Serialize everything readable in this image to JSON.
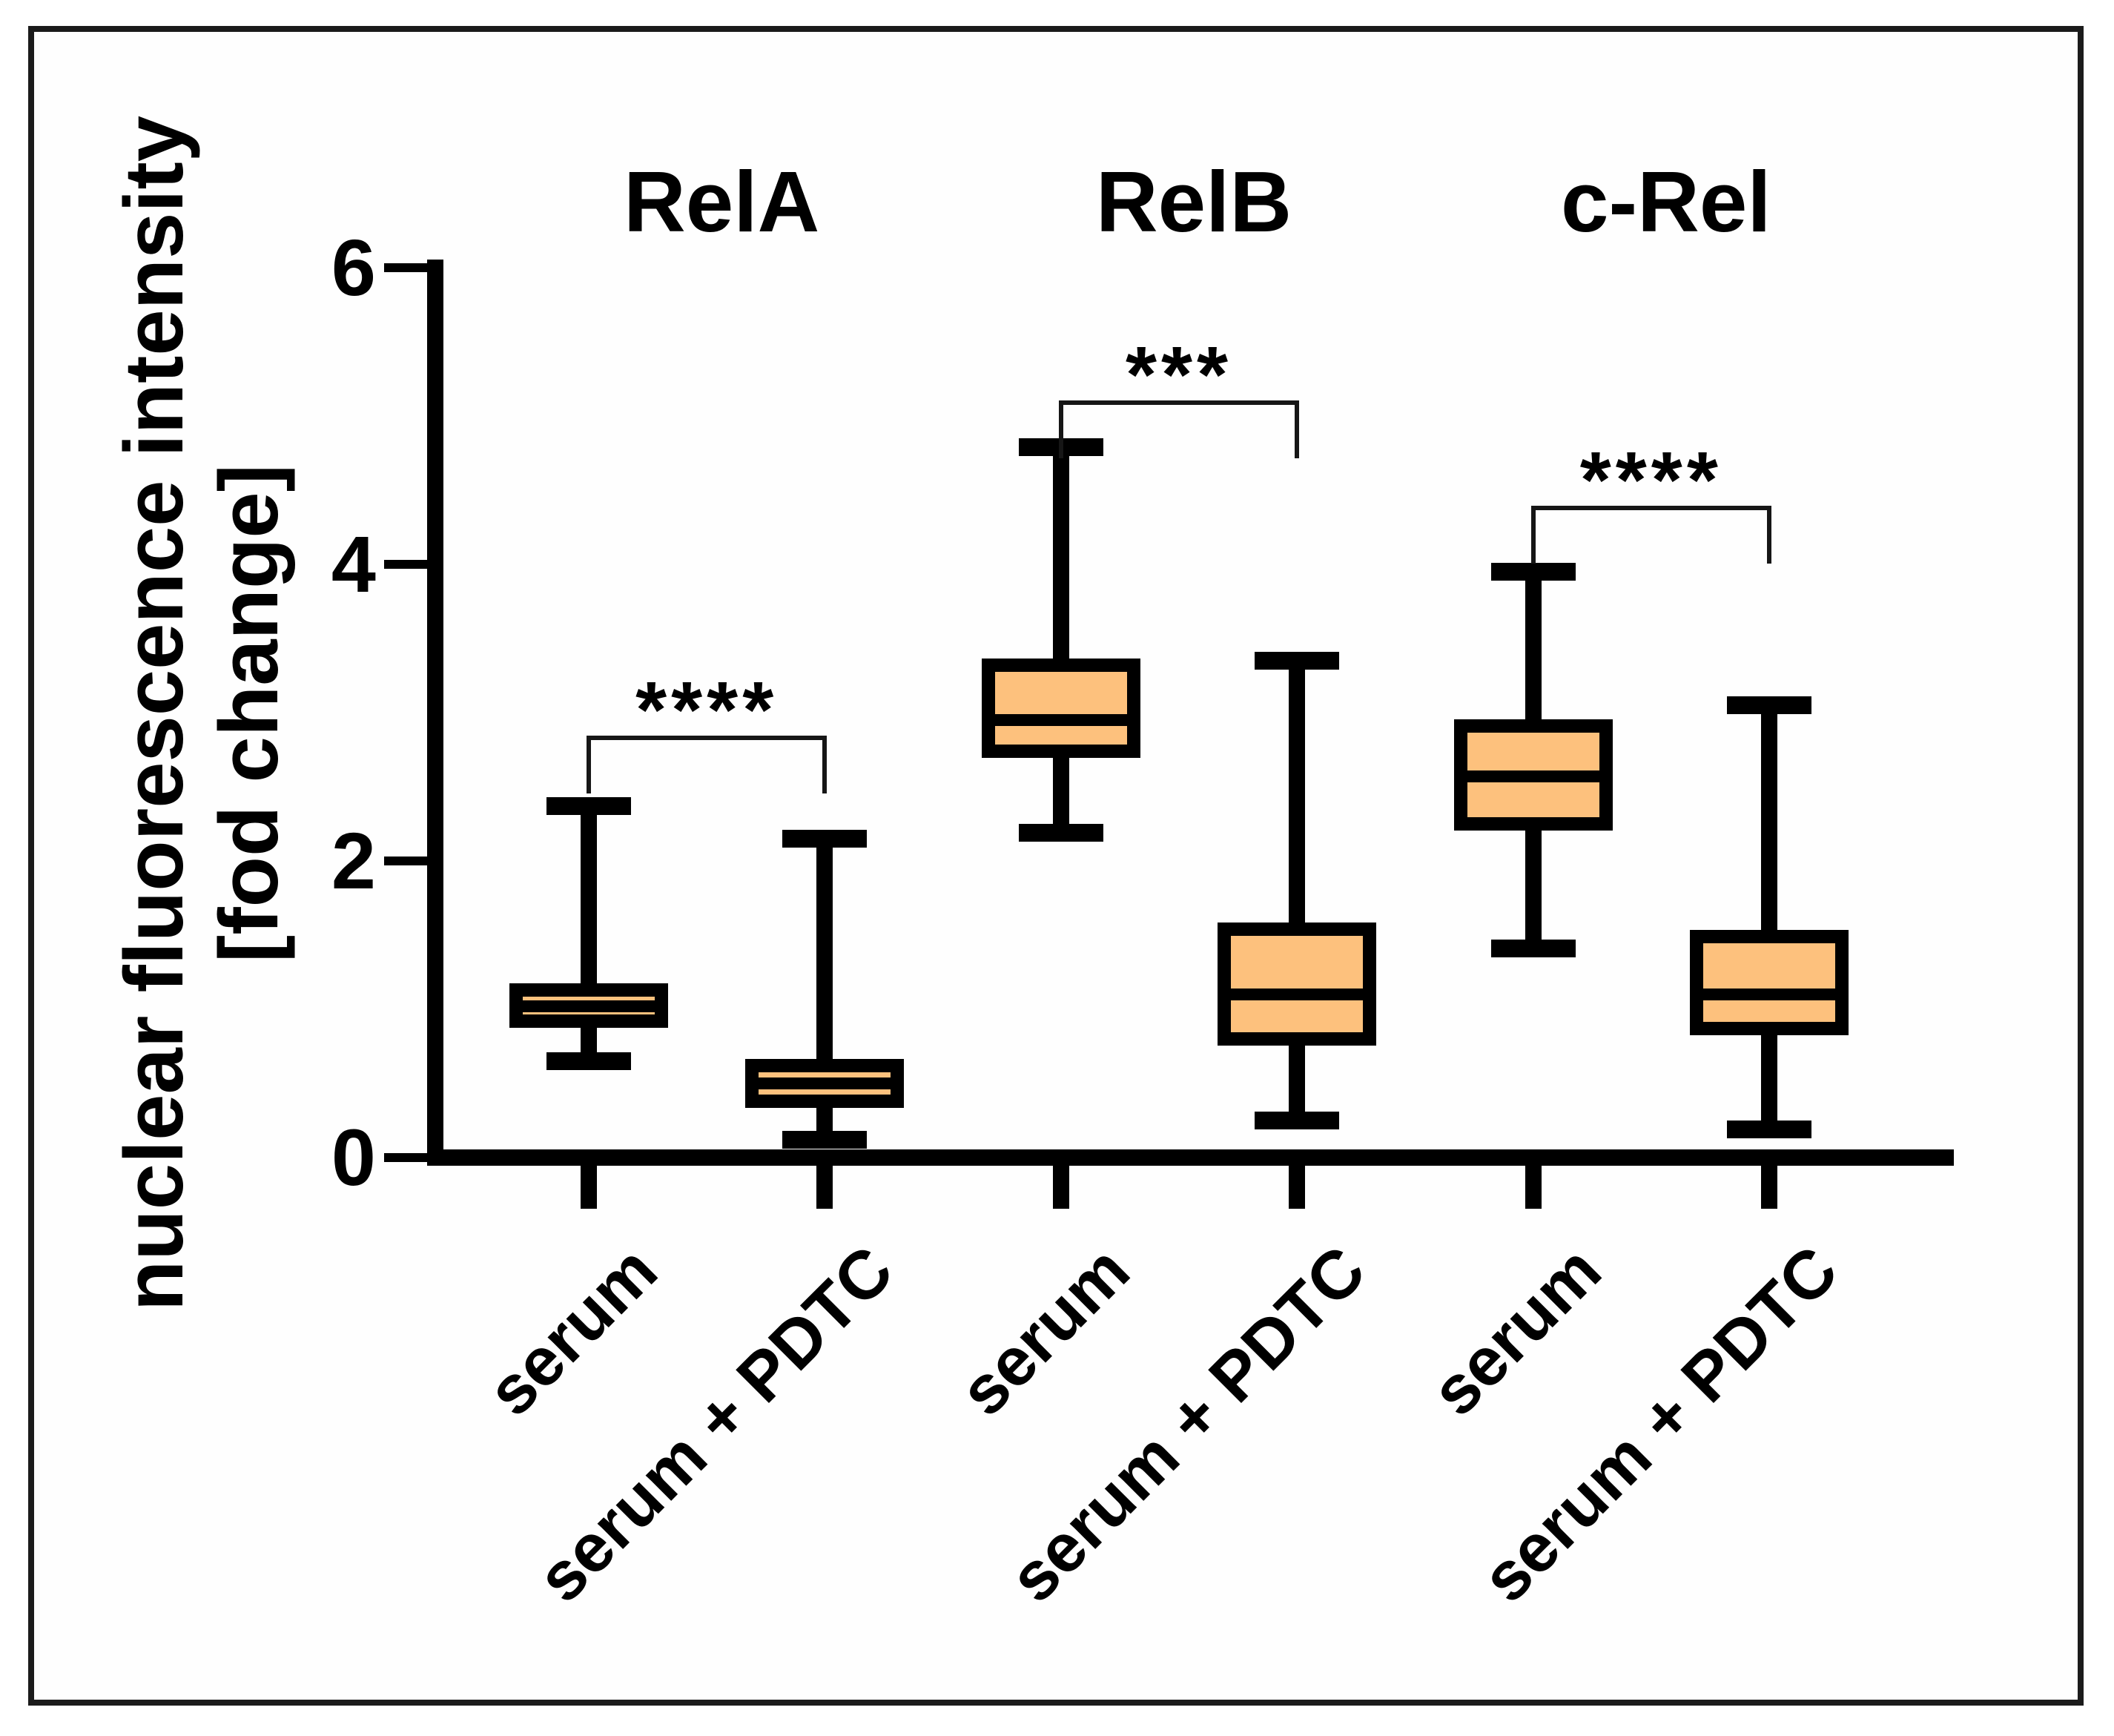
{
  "chart_data": {
    "type": "boxplot",
    "title": "",
    "ylabel_line1": "nuclear fluorescence intensity",
    "ylabel_line2": "[fod change]",
    "ylim": [
      0,
      6
    ],
    "yticks": [
      "0",
      "2",
      "4",
      "6"
    ],
    "grid": false,
    "legend": "none",
    "groups": [
      "RelA",
      "RelB",
      "c-Rel"
    ],
    "conditions": [
      "serum",
      "serum + PDTC"
    ],
    "series": [
      {
        "group": "RelA",
        "condition": "serum",
        "min": 0.65,
        "q1": 0.92,
        "median": 1.02,
        "q3": 1.13,
        "max": 2.37
      },
      {
        "group": "RelA",
        "condition": "serum + PDTC",
        "min": 0.12,
        "q1": 0.38,
        "median": 0.5,
        "q3": 0.62,
        "max": 2.15
      },
      {
        "group": "RelB",
        "condition": "serum",
        "min": 2.19,
        "q1": 2.74,
        "median": 2.95,
        "q3": 3.32,
        "max": 4.79
      },
      {
        "group": "RelB",
        "condition": "serum + PDTC",
        "min": 0.25,
        "q1": 0.8,
        "median": 1.1,
        "q3": 1.54,
        "max": 3.35
      },
      {
        "group": "c-Rel",
        "condition": "serum",
        "min": 1.41,
        "q1": 2.25,
        "median": 2.57,
        "q3": 2.91,
        "max": 3.95
      },
      {
        "group": "c-Rel",
        "condition": "serum + PDTC",
        "min": 0.19,
        "q1": 0.87,
        "median": 1.1,
        "q3": 1.49,
        "max": 3.05
      }
    ],
    "significance": [
      {
        "group": "RelA",
        "label": "****",
        "bracket_y": 2.83
      },
      {
        "group": "RelB",
        "label": "***",
        "bracket_y": 5.09
      },
      {
        "group": "c-Rel",
        "label": "****",
        "bracket_y": 4.38
      }
    ],
    "colors": {
      "box_fill": "#FDC17D",
      "line": "#000000",
      "background": "#FFFFFF"
    }
  }
}
